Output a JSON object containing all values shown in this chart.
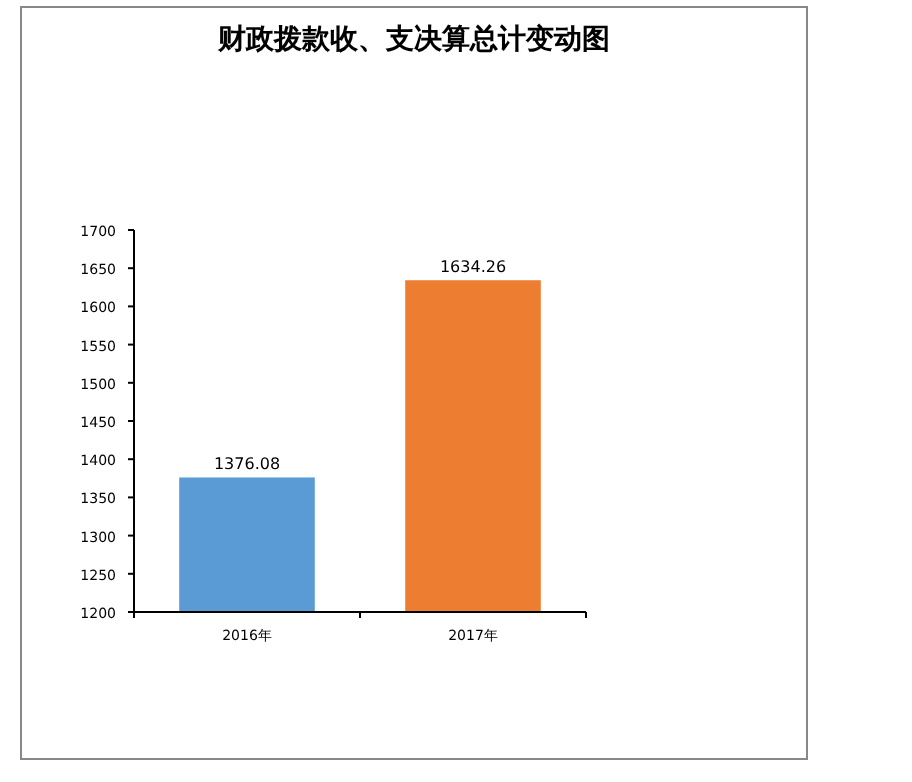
{
  "chart_data": {
    "type": "bar",
    "title": "财政拨款收、支决算总计变动图",
    "categories": [
      "2016年",
      "2017年"
    ],
    "values": [
      1376.08,
      1634.26
    ],
    "colors": [
      "#5b9bd5",
      "#ed7d31"
    ],
    "ylim": [
      1200,
      1700
    ],
    "yticks": [
      1200,
      1250,
      1300,
      1350,
      1400,
      1450,
      1500,
      1550,
      1600,
      1650,
      1700
    ],
    "data_labels": true
  }
}
